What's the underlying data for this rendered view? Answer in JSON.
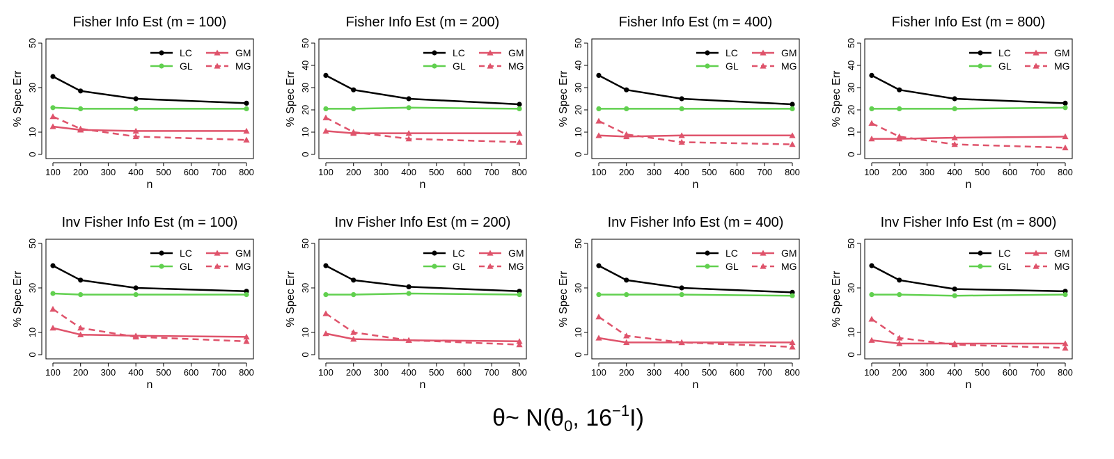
{
  "colors": {
    "LC": "#000000",
    "GL": "#61D04F",
    "GM": "#DF536B",
    "MG": "#DF536B"
  },
  "caption": {
    "prefix": "θ~ N(θ",
    "sub": "0",
    "mid": ", 16",
    "sup": "−1",
    "suffix": "I)"
  },
  "chart_data": [
    {
      "type": "line",
      "title": "Fisher Info Est (m = 100)",
      "xlabel": "n",
      "ylabel": "% Spec Err",
      "x": [
        100,
        200,
        400,
        800
      ],
      "xlim": [
        100,
        800
      ],
      "ylim": [
        0,
        50
      ],
      "xticks": [
        "100",
        "200",
        "300",
        "400",
        "500",
        "600",
        "700",
        "800"
      ],
      "yticks": [
        "0",
        "10",
        "30",
        "50"
      ],
      "legend": [
        "LC",
        "GL",
        "GM",
        "MG"
      ],
      "series": [
        {
          "name": "LC",
          "values": [
            35,
            28.5,
            25,
            23
          ],
          "style": "solid",
          "marker": "circle"
        },
        {
          "name": "GL",
          "values": [
            21,
            20.5,
            20.5,
            20.5
          ],
          "style": "solid",
          "marker": "circle"
        },
        {
          "name": "GM",
          "values": [
            12.5,
            11,
            10.5,
            10.5
          ],
          "style": "solid",
          "marker": "triangle"
        },
        {
          "name": "MG",
          "values": [
            17,
            11.5,
            8,
            6.5
          ],
          "style": "dashed",
          "marker": "triangle"
        }
      ]
    },
    {
      "type": "line",
      "title": "Fisher Info Est (m = 200)",
      "xlabel": "n",
      "ylabel": "% Spec Err",
      "x": [
        100,
        200,
        400,
        800
      ],
      "xlim": [
        100,
        800
      ],
      "ylim": [
        0,
        50
      ],
      "xticks": [
        "100",
        "200",
        "300",
        "400",
        "500",
        "600",
        "700",
        "800"
      ],
      "yticks": [
        "0",
        "10",
        "20",
        "30",
        "40",
        "50"
      ],
      "legend": [
        "LC",
        "GL",
        "GM",
        "MG"
      ],
      "series": [
        {
          "name": "LC",
          "values": [
            35.5,
            29,
            25,
            22.5
          ],
          "style": "solid",
          "marker": "circle"
        },
        {
          "name": "GL",
          "values": [
            20.5,
            20.5,
            21,
            20.5
          ],
          "style": "solid",
          "marker": "circle"
        },
        {
          "name": "GM",
          "values": [
            10.5,
            9.5,
            9.5,
            9.5
          ],
          "style": "solid",
          "marker": "triangle"
        },
        {
          "name": "MG",
          "values": [
            16.5,
            10,
            7,
            5.5
          ],
          "style": "dashed",
          "marker": "triangle"
        }
      ]
    },
    {
      "type": "line",
      "title": "Fisher Info Est (m = 400)",
      "xlabel": "n",
      "ylabel": "% Spec Err",
      "x": [
        100,
        200,
        400,
        800
      ],
      "xlim": [
        100,
        800
      ],
      "ylim": [
        0,
        50
      ],
      "xticks": [
        "100",
        "200",
        "300",
        "400",
        "500",
        "600",
        "700",
        "800"
      ],
      "yticks": [
        "0",
        "10",
        "20",
        "30",
        "40",
        "50"
      ],
      "legend": [
        "LC",
        "GL",
        "GM",
        "MG"
      ],
      "series": [
        {
          "name": "LC",
          "values": [
            35.5,
            29,
            25,
            22.5
          ],
          "style": "solid",
          "marker": "circle"
        },
        {
          "name": "GL",
          "values": [
            20.5,
            20.5,
            20.5,
            20.5
          ],
          "style": "solid",
          "marker": "circle"
        },
        {
          "name": "GM",
          "values": [
            8.5,
            8,
            8.5,
            8.5
          ],
          "style": "solid",
          "marker": "triangle"
        },
        {
          "name": "MG",
          "values": [
            15,
            9,
            5.5,
            4.5
          ],
          "style": "dashed",
          "marker": "triangle"
        }
      ]
    },
    {
      "type": "line",
      "title": "Fisher Info Est (m = 800)",
      "xlabel": "n",
      "ylabel": "% Spec Err",
      "x": [
        100,
        200,
        400,
        800
      ],
      "xlim": [
        100,
        800
      ],
      "ylim": [
        0,
        50
      ],
      "xticks": [
        "100",
        "200",
        "300",
        "400",
        "500",
        "600",
        "700",
        "800"
      ],
      "yticks": [
        "0",
        "10",
        "20",
        "30",
        "40",
        "50"
      ],
      "legend": [
        "LC",
        "GL",
        "GM",
        "MG"
      ],
      "series": [
        {
          "name": "LC",
          "values": [
            35.5,
            29,
            25,
            23
          ],
          "style": "solid",
          "marker": "circle"
        },
        {
          "name": "GL",
          "values": [
            20.5,
            20.5,
            20.5,
            21
          ],
          "style": "solid",
          "marker": "circle"
        },
        {
          "name": "GM",
          "values": [
            7,
            7,
            7.5,
            8
          ],
          "style": "solid",
          "marker": "triangle"
        },
        {
          "name": "MG",
          "values": [
            14,
            8,
            4.5,
            3
          ],
          "style": "dashed",
          "marker": "triangle"
        }
      ]
    },
    {
      "type": "line",
      "title": "Inv Fisher Info Est (m = 100)",
      "xlabel": "n",
      "ylabel": "% Spec Err",
      "x": [
        100,
        200,
        400,
        800
      ],
      "xlim": [
        100,
        800
      ],
      "ylim": [
        0,
        50
      ],
      "xticks": [
        "100",
        "200",
        "300",
        "400",
        "500",
        "600",
        "700",
        "800"
      ],
      "yticks": [
        "0",
        "10",
        "30",
        "50"
      ],
      "legend": [
        "LC",
        "GL",
        "GM",
        "MG"
      ],
      "series": [
        {
          "name": "LC",
          "values": [
            40,
            33.5,
            30,
            28.5
          ],
          "style": "solid",
          "marker": "circle"
        },
        {
          "name": "GL",
          "values": [
            27.5,
            27,
            27,
            27
          ],
          "style": "solid",
          "marker": "circle"
        },
        {
          "name": "GM",
          "values": [
            12,
            9,
            8.5,
            8
          ],
          "style": "solid",
          "marker": "triangle"
        },
        {
          "name": "MG",
          "values": [
            20.5,
            12,
            8,
            6
          ],
          "style": "dashed",
          "marker": "triangle"
        }
      ]
    },
    {
      "type": "line",
      "title": "Inv Fisher Info Est (m = 200)",
      "xlabel": "n",
      "ylabel": "% Spec Err",
      "x": [
        100,
        200,
        400,
        800
      ],
      "xlim": [
        100,
        800
      ],
      "ylim": [
        0,
        50
      ],
      "xticks": [
        "100",
        "200",
        "300",
        "400",
        "500",
        "600",
        "700",
        "800"
      ],
      "yticks": [
        "0",
        "10",
        "30",
        "50"
      ],
      "legend": [
        "LC",
        "GL",
        "GM",
        "MG"
      ],
      "series": [
        {
          "name": "LC",
          "values": [
            40,
            33.5,
            30.5,
            28.5
          ],
          "style": "solid",
          "marker": "circle"
        },
        {
          "name": "GL",
          "values": [
            27,
            27,
            27.5,
            27
          ],
          "style": "solid",
          "marker": "circle"
        },
        {
          "name": "GM",
          "values": [
            9.5,
            7,
            6.5,
            6
          ],
          "style": "solid",
          "marker": "triangle"
        },
        {
          "name": "MG",
          "values": [
            18.5,
            10,
            6.5,
            4.5
          ],
          "style": "dashed",
          "marker": "triangle"
        }
      ]
    },
    {
      "type": "line",
      "title": "Inv Fisher Info Est (m = 400)",
      "xlabel": "n",
      "ylabel": "% Spec Err",
      "x": [
        100,
        200,
        400,
        800
      ],
      "xlim": [
        100,
        800
      ],
      "ylim": [
        0,
        50
      ],
      "xticks": [
        "100",
        "200",
        "300",
        "400",
        "500",
        "600",
        "700",
        "800"
      ],
      "yticks": [
        "0",
        "10",
        "30",
        "50"
      ],
      "legend": [
        "LC",
        "GL",
        "GM",
        "MG"
      ],
      "series": [
        {
          "name": "LC",
          "values": [
            40,
            33.5,
            30,
            28
          ],
          "style": "solid",
          "marker": "circle"
        },
        {
          "name": "GL",
          "values": [
            27,
            27,
            27,
            26.5
          ],
          "style": "solid",
          "marker": "circle"
        },
        {
          "name": "GM",
          "values": [
            7.5,
            5.5,
            5.5,
            5.5
          ],
          "style": "solid",
          "marker": "triangle"
        },
        {
          "name": "MG",
          "values": [
            17,
            8.5,
            5.5,
            3.5
          ],
          "style": "dashed",
          "marker": "triangle"
        }
      ]
    },
    {
      "type": "line",
      "title": "Inv Fisher Info Est (m = 800)",
      "xlabel": "n",
      "ylabel": "% Spec Err",
      "x": [
        100,
        200,
        400,
        800
      ],
      "xlim": [
        100,
        800
      ],
      "ylim": [
        0,
        50
      ],
      "xticks": [
        "100",
        "200",
        "300",
        "400",
        "500",
        "600",
        "700",
        "800"
      ],
      "yticks": [
        "0",
        "10",
        "30",
        "50"
      ],
      "legend": [
        "LC",
        "GL",
        "GM",
        "MG"
      ],
      "series": [
        {
          "name": "LC",
          "values": [
            40,
            33.5,
            29.5,
            28.5
          ],
          "style": "solid",
          "marker": "circle"
        },
        {
          "name": "GL",
          "values": [
            27,
            27,
            26.5,
            27
          ],
          "style": "solid",
          "marker": "circle"
        },
        {
          "name": "GM",
          "values": [
            6.5,
            5,
            5,
            5
          ],
          "style": "solid",
          "marker": "triangle"
        },
        {
          "name": "MG",
          "values": [
            16,
            7.5,
            4.5,
            3
          ],
          "style": "dashed",
          "marker": "triangle"
        }
      ]
    }
  ]
}
